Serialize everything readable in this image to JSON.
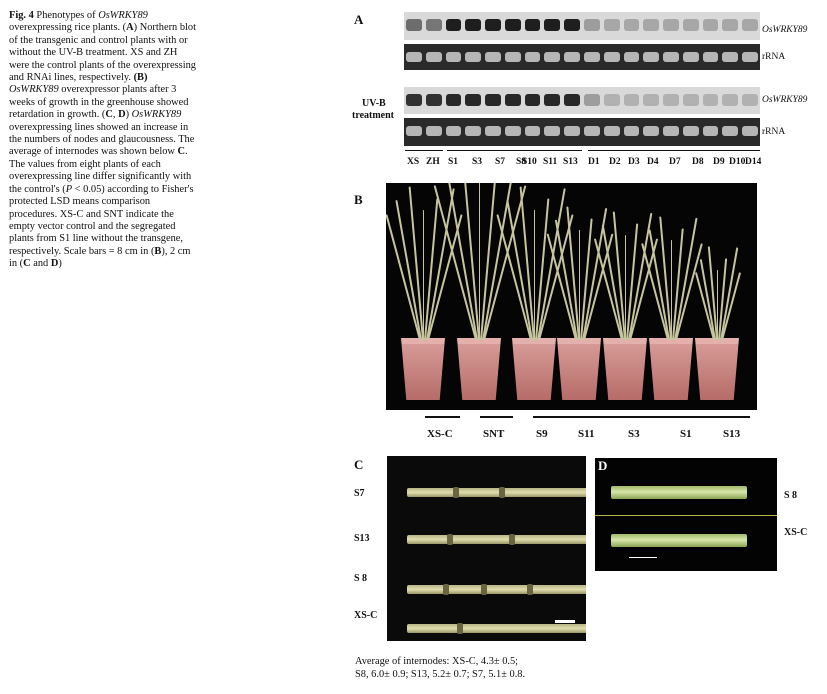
{
  "caption": {
    "fig": "Fig. 4",
    "s1": " Phenotypes of ",
    "gene1": "OsWRKY89",
    "s2": " overexpressing rice plants. (",
    "a": "A",
    "s3": ") Northern blot of the transgenic and control plants with or without the UV-B treatment. XS and ZH were the control plants of the overexpressing and RNAi lines, respectively. ",
    "b": "(B)",
    "s4": " ",
    "gene2": "OsWRKY89",
    "s5": " overexpressor plants after 3 weeks of growth in the greenhouse showed retardation in growth. (",
    "c": "C",
    "s6": ", ",
    "d": "D",
    "s7": ") ",
    "gene3": "OsWRKY89",
    "s8": " overexpressing lines showed an increase in the numbers of nodes and glaucousness. The average of internodes was shown below ",
    "c2": "C",
    "s9": ". The values from eight plants of each overexpressing line differ significantly with the control's (",
    "p": "P",
    "s10": " < 0.05) according to Fisher's protected LSD means comparison procedures. XS-C and SNT indicate the empty vector control and the segregated plants from S1 line without the transgene, respectively. Scale bars = 8 cm in (",
    "b2": "B",
    "s11": "), 2 cm in (",
    "c3": "C",
    "s12": " and ",
    "d2": "D",
    "s13": ")"
  },
  "panelA": {
    "letter": "A",
    "gene_label": "OsWRKY89",
    "rrna_label": "rRNA",
    "uvb_line1": "UV-B",
    "uvb_line2": "treatment",
    "gene_label_2": "OsWRKY89",
    "rrna_label_2": "rRNA",
    "lanes": [
      "XS",
      "ZH",
      "S1",
      "S3",
      "S7",
      "S8",
      "S10",
      "S11",
      "S13",
      "D1",
      "D2",
      "D3",
      "D4",
      "D7",
      "D8",
      "D9",
      "D10",
      "D14"
    ]
  },
  "panelB": {
    "letter": "B",
    "plants": [
      "XS-C",
      "SNT",
      "S9",
      "S11",
      "S3",
      "S1",
      "S13"
    ]
  },
  "panelC": {
    "letter": "C",
    "rows": [
      "S7",
      "S13",
      "S 8",
      "XS-C"
    ]
  },
  "panelD": {
    "letter": "D",
    "rows": [
      "S 8",
      "XS-C"
    ]
  },
  "average": {
    "line1": "Average of internodes:  XS-C, 4.3± 0.5;",
    "line2": "S8, 6.0± 0.9; S13, 5.2± 0.7; S7, 5.1± 0.8."
  }
}
